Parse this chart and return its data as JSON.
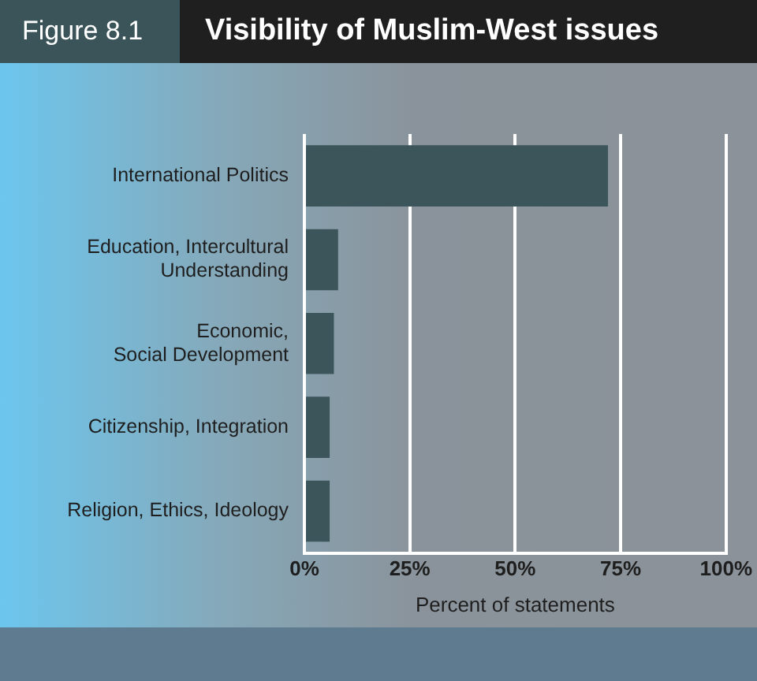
{
  "chart_data": {
    "type": "bar",
    "orientation": "horizontal",
    "title": "Visibility of Muslim-West issues",
    "subtitle": "Figure 8.1",
    "xlabel": "Percent of statements",
    "categories": [
      "International Politics",
      "Education, Intercultural\nUnderstanding",
      "Economic,\nSocial Development",
      "Citizenship, Integration",
      "Religion, Ethics, Ideology"
    ],
    "values": [
      72,
      8,
      7,
      6,
      6
    ],
    "color": "#3c555a",
    "xlim": [
      0,
      100
    ],
    "xticks": [
      {
        "value": 0,
        "label": "0%"
      },
      {
        "value": 25,
        "label": "25%"
      },
      {
        "value": 50,
        "label": "50%"
      },
      {
        "value": 75,
        "label": "75%"
      },
      {
        "value": 100,
        "label": "100%"
      }
    ],
    "grid": "x"
  }
}
